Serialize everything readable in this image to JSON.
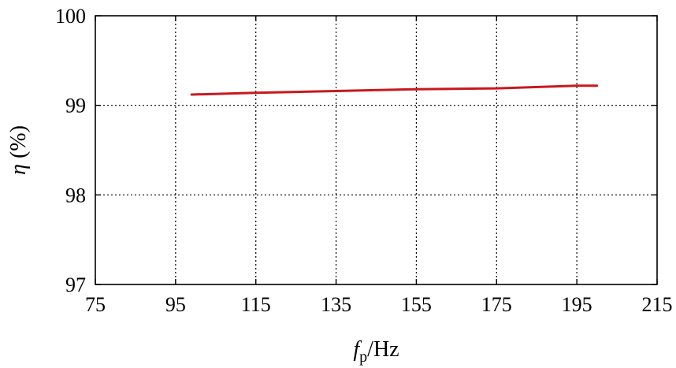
{
  "chart_data": {
    "type": "line",
    "xlabel": {
      "main": "f",
      "sub": "p",
      "rest": "/Hz"
    },
    "ylabel": {
      "symbol": "η",
      "unit": " (%)"
    },
    "xlim": [
      75,
      215
    ],
    "ylim": [
      97,
      100
    ],
    "xticks": [
      75,
      95,
      115,
      135,
      155,
      175,
      195,
      215
    ],
    "yticks": [
      97,
      98,
      99,
      100
    ],
    "grid": true,
    "series": [
      {
        "color": "#c8181e",
        "x": [
          99,
          115,
          135,
          155,
          175,
          195,
          200
        ],
        "y": [
          99.12,
          99.14,
          99.16,
          99.18,
          99.19,
          99.22,
          99.22
        ]
      }
    ]
  }
}
